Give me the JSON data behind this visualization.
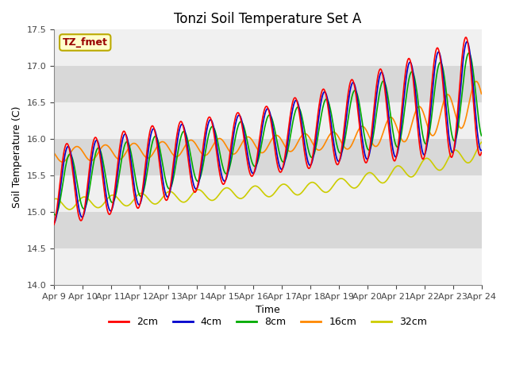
{
  "title": "Tonzi Soil Temperature Set A",
  "ylabel": "Soil Temperature (C)",
  "xlabel": "Time",
  "label_text": "TZ_fmet",
  "ylim": [
    14.0,
    17.5
  ],
  "yticks": [
    14.0,
    14.5,
    15.0,
    15.5,
    16.0,
    16.5,
    17.0,
    17.5
  ],
  "xtick_labels": [
    "Apr 9",
    "Apr 10",
    "Apr 11",
    "Apr 12",
    "Apr 13",
    "Apr 14",
    "Apr 15",
    "Apr 16",
    "Apr 17",
    "Apr 18",
    "Apr 19",
    "Apr 20",
    "Apr 21",
    "Apr 22",
    "Apr 23",
    "Apr 24"
  ],
  "line_colors": [
    "#ff0000",
    "#0000cc",
    "#00aa00",
    "#ff8800",
    "#cccc00"
  ],
  "line_labels": [
    "2cm",
    "4cm",
    "8cm",
    "16cm",
    "32cm"
  ],
  "line_width": 1.2,
  "plot_bg_color": "#e8e8e8",
  "band_light": "#f0f0f0",
  "band_dark": "#d8d8d8",
  "title_fontsize": 12,
  "axis_label_fontsize": 9,
  "tick_fontsize": 8
}
